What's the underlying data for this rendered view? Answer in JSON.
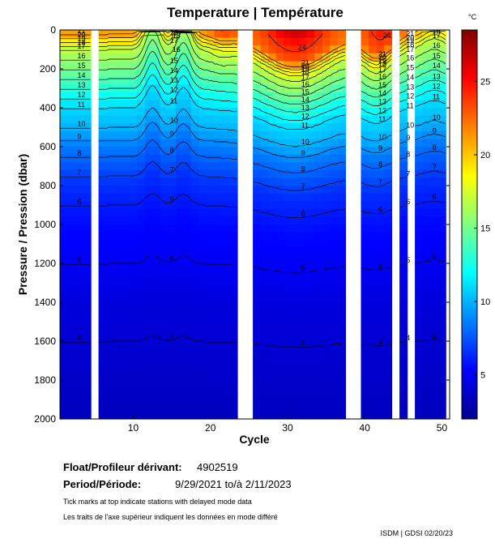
{
  "title": "Temperature | Température",
  "float": {
    "label": "Float/Profileur dérivant:",
    "id": "4902519"
  },
  "period": {
    "label": "Period/Période:",
    "value": "9/29/2021  to/à  2/11/2023"
  },
  "notes": {
    "en": "Tick marks at top indicate stations with delayed mode data",
    "fr": "Les traits de l'axe supérieur indiquent les données en mode différé"
  },
  "credit": "ISDM | GDSI  02/20/23",
  "chart_data": {
    "type": "heatmap",
    "title": "Temperature | Température",
    "xlabel": "Cycle",
    "ylabel": "Pressure / Pression (dbar)",
    "xlim": [
      0.5,
      51
    ],
    "ylim": [
      2000,
      0
    ],
    "x_ticks": [
      10,
      20,
      30,
      40,
      50
    ],
    "y_ticks": [
      0,
      200,
      400,
      600,
      800,
      1000,
      1200,
      1400,
      1600,
      1800,
      2000
    ],
    "colorbar": {
      "label": "°C",
      "range": [
        2,
        28.5
      ],
      "ticks": [
        5,
        10,
        15,
        20,
        25
      ],
      "colors": [
        "#00008f",
        "#0000ff",
        "#0080ff",
        "#00ffff",
        "#80ff80",
        "#ffff00",
        "#ff8000",
        "#ff0000",
        "#800000"
      ]
    },
    "missing_cycles": [
      5,
      24,
      25,
      38,
      39,
      44,
      46
    ],
    "profiles": [
      {
        "cycle": 1,
        "depth_limit": 2000
      },
      {
        "cycle": 10,
        "depth_limit": 2000
      },
      {
        "cycle": 20,
        "depth_limit": 2000
      },
      {
        "cycle": 30,
        "depth_limit": 2000
      },
      {
        "cycle": 40,
        "depth_limit": 2000
      },
      {
        "cycle": 50,
        "depth_limit": 2000
      }
    ],
    "temperature_profile_typical": {
      "pressure": [
        0,
        100,
        200,
        300,
        400,
        500,
        600,
        700,
        800,
        900,
        1000,
        1200,
        1400,
        1600,
        1800,
        2000
      ],
      "temperature": [
        22,
        17,
        15,
        13,
        11,
        10,
        8.5,
        7.5,
        6.5,
        6,
        5.5,
        5,
        4.3,
        4,
        3.7,
        3.4
      ]
    },
    "contour_labels": [
      "12",
      "15",
      "14",
      "13",
      "12",
      "19",
      "18",
      "17",
      "16",
      "13",
      "12",
      "11",
      "10",
      "9",
      "8",
      "7",
      "6",
      "5",
      "4",
      "24",
      "21",
      "26"
    ]
  }
}
